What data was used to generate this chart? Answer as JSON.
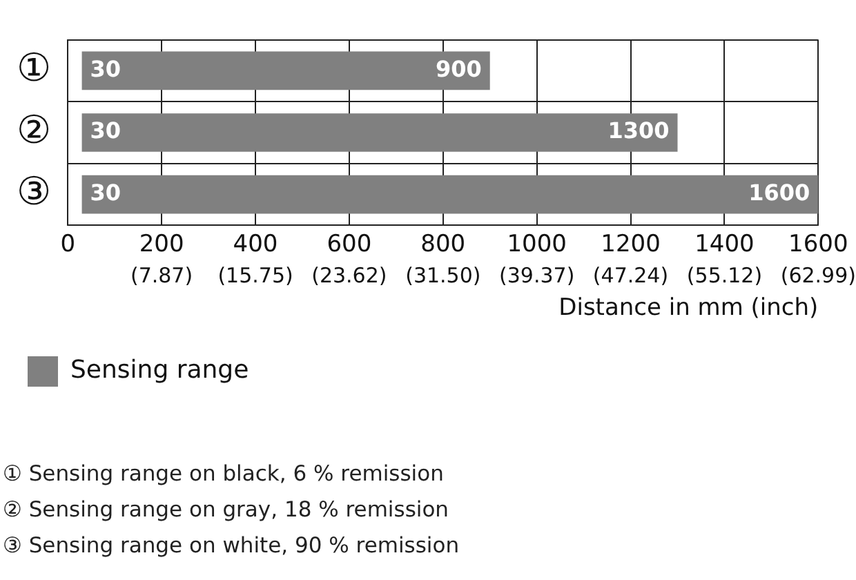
{
  "chart_data": {
    "type": "bar",
    "orientation": "horizontal",
    "categories": [
      "①",
      "②",
      "③"
    ],
    "series": [
      {
        "name": "Sensing range",
        "color": "#808080",
        "base": [
          30,
          30,
          30
        ],
        "values": [
          870,
          1270,
          1570
        ]
      }
    ],
    "xlim": [
      0,
      1600
    ],
    "xticks": [
      0,
      200,
      400,
      600,
      800,
      1000,
      1200,
      1400,
      1600
    ],
    "x2lim": [
      0,
      62.99
    ],
    "x2ticks": [
      {
        "value": 0,
        "label": null
      },
      {
        "value": 7.87,
        "label": "(7.87)"
      },
      {
        "value": 15.75,
        "label": "(15.75)"
      },
      {
        "value": 23.62,
        "label": "(23.62)"
      },
      {
        "value": 31.5,
        "label": "(31.50)"
      },
      {
        "value": 39.37,
        "label": "(39.37)"
      },
      {
        "value": 47.24,
        "label": "(47.24)"
      },
      {
        "value": 55.12,
        "label": "(55.12)"
      },
      {
        "value": 62.99,
        "label": "(62.99)"
      }
    ],
    "xlabel": "Distance in mm (inch)",
    "grid": true,
    "legend": "bottom left",
    "annotations": [
      {
        "text": "30",
        "x": 30,
        "y": "①"
      },
      {
        "text": "900",
        "x": 900,
        "y": "①"
      },
      {
        "text": "30",
        "x": 30,
        "y": "②"
      },
      {
        "text": "1300",
        "x": 1300,
        "y": "②"
      },
      {
        "text": "30",
        "x": 30,
        "y": "③"
      },
      {
        "text": "1600",
        "x": 1600,
        "y": "③"
      },
      "① Sensing range on black, 6 % remission",
      "② Sensing range on gray, 18 % remission",
      "③ Sensing range on white, 90 % remission"
    ]
  }
}
